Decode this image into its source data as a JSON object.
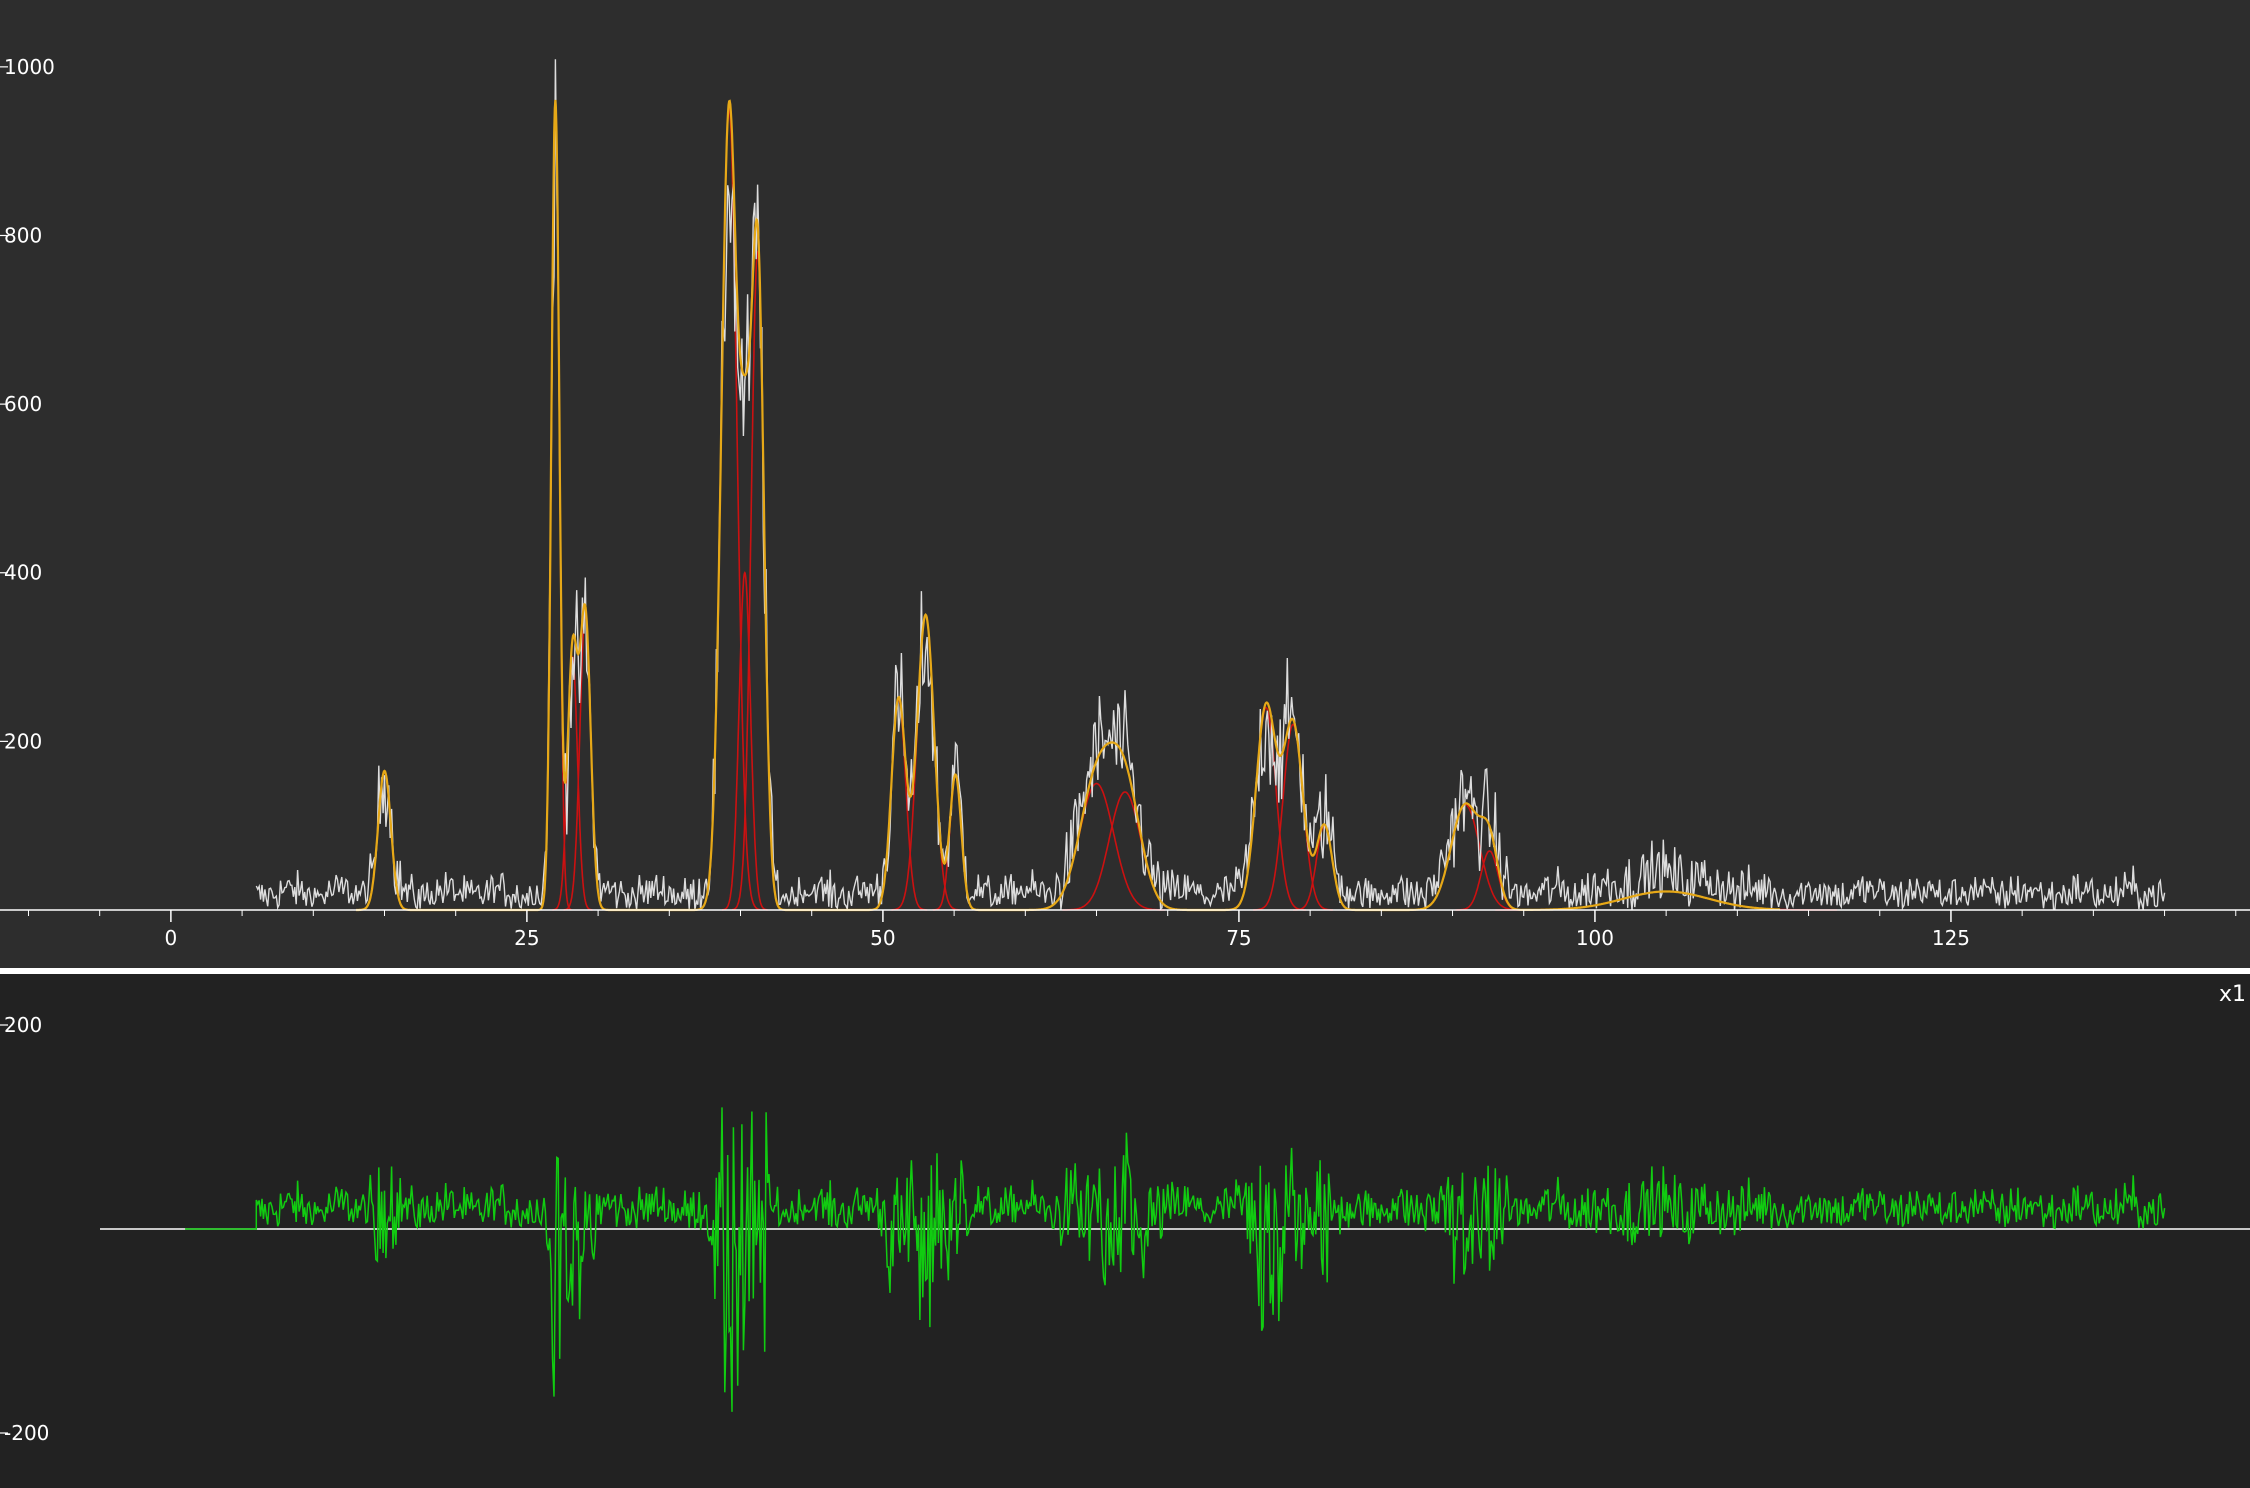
{
  "colors": {
    "main_bg": "#2d2d2d",
    "resid_bg": "#222222",
    "divider": "#ffffff",
    "axis": "#ffffff",
    "label": "#ffffff",
    "data": "#dddddd",
    "fit": "#e6a817",
    "component": "#cc1111",
    "residual": "#11cc11"
  },
  "chart_data": [
    {
      "type": "line",
      "panel": "main",
      "title": "",
      "xlabel": "",
      "ylabel": "",
      "xlim": [
        -12,
        146
      ],
      "ylim": [
        0,
        1020
      ],
      "x_ticks": [
        0,
        25,
        50,
        75,
        100,
        125
      ],
      "y_ticks": [
        200,
        400,
        600,
        800,
        1000
      ],
      "x_tick_labels": [
        "0",
        "25",
        "50",
        "75",
        "100",
        "125"
      ],
      "y_tick_labels": [
        "200",
        "400",
        "600",
        "800",
        "1000"
      ],
      "grid": false,
      "legend": "none",
      "noise_level": 20,
      "data_range": [
        6,
        140
      ],
      "fit_range": [
        13,
        113
      ],
      "fit_peaks": [
        {
          "center": 15.0,
          "height": 165,
          "width": 0.45
        },
        {
          "center": 27.0,
          "height": 960,
          "width": 0.28
        },
        {
          "center": 28.2,
          "height": 300,
          "width": 0.35
        },
        {
          "center": 29.1,
          "height": 350,
          "width": 0.38
        },
        {
          "center": 39.2,
          "height": 950,
          "width": 0.55
        },
        {
          "center": 40.3,
          "height": 400,
          "width": 0.4
        },
        {
          "center": 41.2,
          "height": 780,
          "width": 0.45
        },
        {
          "center": 51.1,
          "height": 250,
          "width": 0.5
        },
        {
          "center": 53.0,
          "height": 350,
          "width": 0.6
        },
        {
          "center": 55.1,
          "height": 160,
          "width": 0.4
        },
        {
          "center": 65.0,
          "height": 150,
          "width": 1.2
        },
        {
          "center": 67.0,
          "height": 140,
          "width": 1.1
        },
        {
          "center": 76.9,
          "height": 240,
          "width": 0.7
        },
        {
          "center": 78.8,
          "height": 220,
          "width": 0.7
        },
        {
          "center": 81.0,
          "height": 100,
          "width": 0.55
        },
        {
          "center": 90.9,
          "height": 125,
          "width": 1.0
        },
        {
          "center": 92.6,
          "height": 70,
          "width": 0.6
        },
        {
          "center": 105.0,
          "height": 22,
          "width": 3.0
        }
      ]
    },
    {
      "type": "line",
      "panel": "residual",
      "title": "",
      "xlabel": "",
      "ylabel": "",
      "xlim": [
        -12,
        146
      ],
      "ylim": [
        -250,
        250
      ],
      "y_ticks": [
        200,
        -200
      ],
      "y_tick_labels": [
        "200",
        "-200"
      ],
      "scale_label": "x1",
      "grid": false,
      "legend": "none"
    }
  ]
}
